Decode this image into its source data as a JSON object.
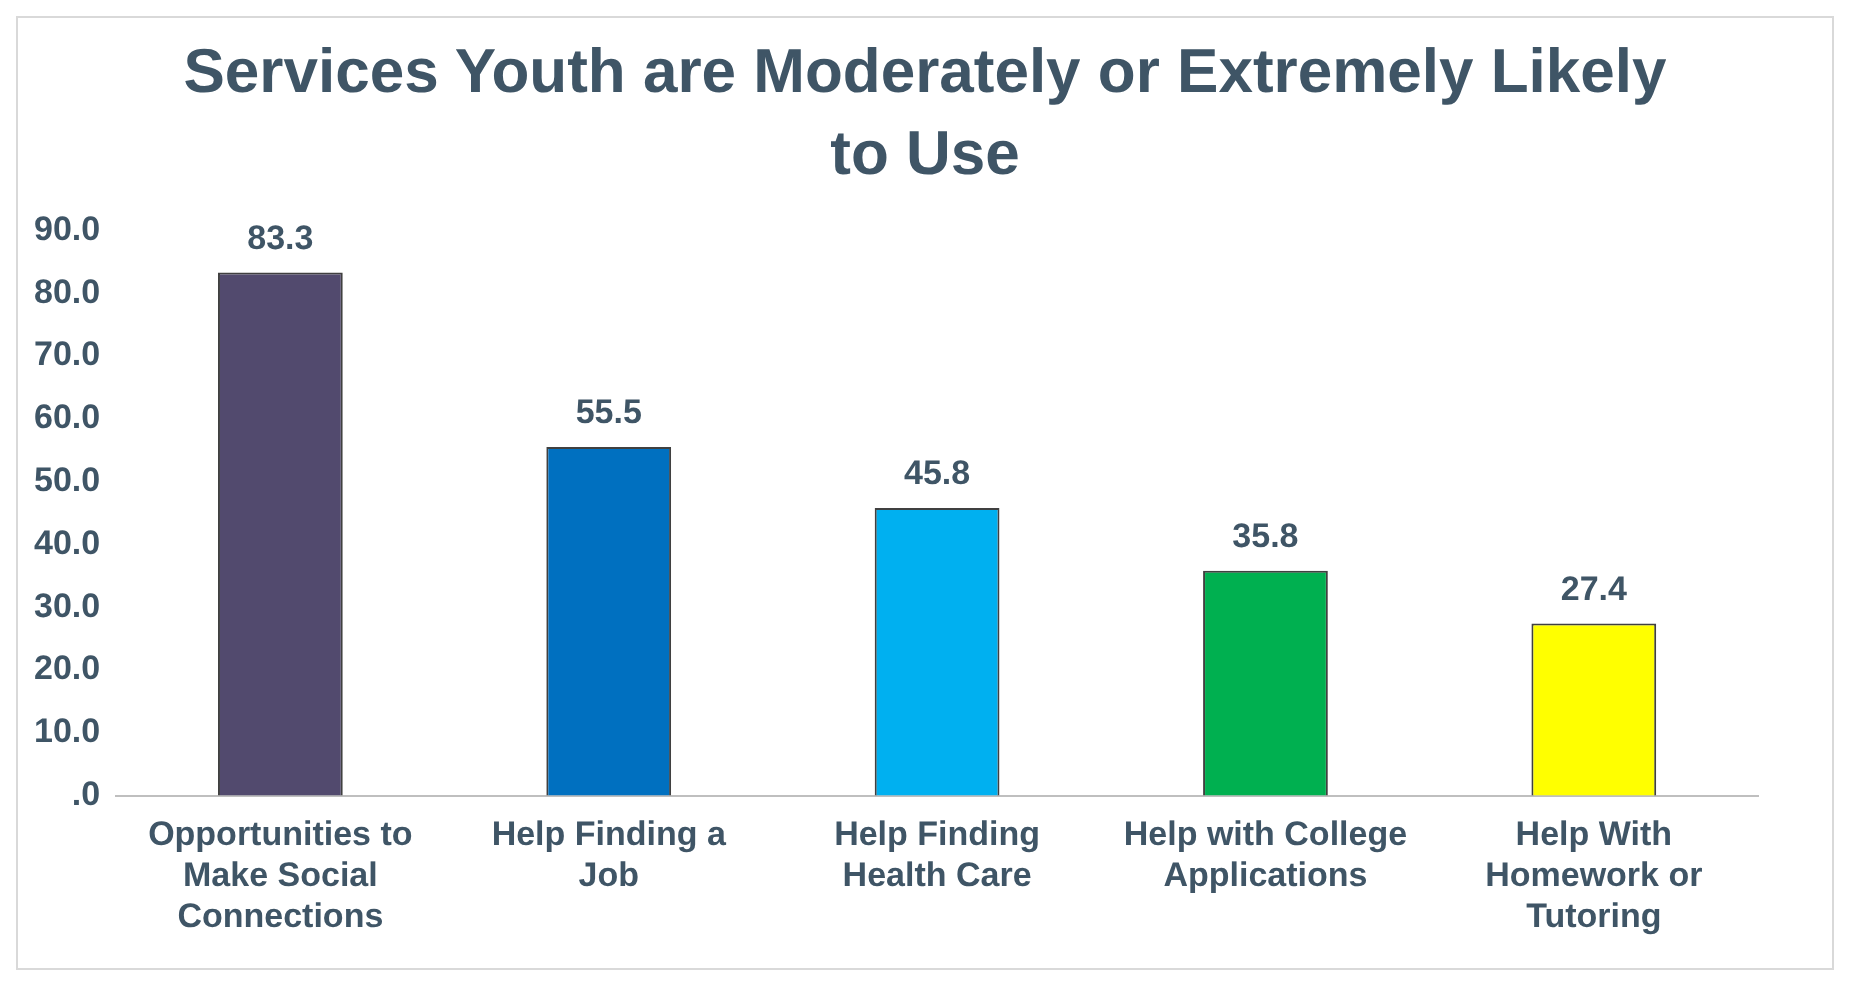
{
  "chart_data": {
    "type": "bar",
    "title": "Services Youth are Moderately or Extremely Likely to Use",
    "categories": [
      "Opportunities to Make Social Connections",
      "Help Finding a Job",
      "Help Finding Health Care",
      "Help with College Applications",
      "Help With Homework or Tutoring"
    ],
    "values": [
      83.3,
      55.5,
      45.8,
      35.8,
      27.4
    ],
    "colors": [
      "#524a6e",
      "#0070c0",
      "#00b0f0",
      "#00b050",
      "#ffff00"
    ],
    "ylim": [
      0,
      90
    ],
    "yticks": [
      {
        "value": 0,
        "label": ".0"
      },
      {
        "value": 10,
        "label": "10.0"
      },
      {
        "value": 20,
        "label": "20.0"
      },
      {
        "value": 30,
        "label": "30.0"
      },
      {
        "value": 40,
        "label": "40.0"
      },
      {
        "value": 50,
        "label": "50.0"
      },
      {
        "value": 60,
        "label": "60.0"
      },
      {
        "value": 70,
        "label": "70.0"
      },
      {
        "value": 80,
        "label": "80.0"
      },
      {
        "value": 90,
        "label": "90.0"
      }
    ],
    "data_labels": true,
    "grid": false,
    "legend": false
  }
}
